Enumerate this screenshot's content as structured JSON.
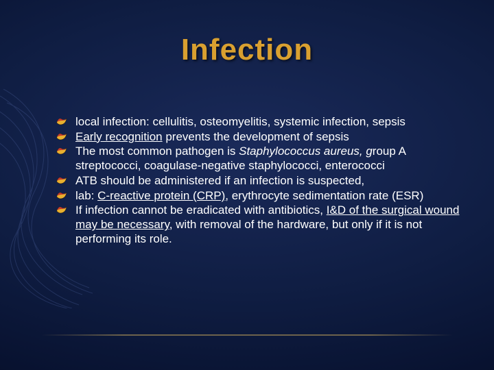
{
  "title": {
    "text": "Infection",
    "color": "#d9a030",
    "fontsize": 44
  },
  "body": {
    "text_color": "#ffffff",
    "fontsize": 17,
    "line_height": 1.22
  },
  "bullet_icon": {
    "fill_top": "#c63a2a",
    "fill_bottom": "#e8b030",
    "stroke": "#2a1a00"
  },
  "background": {
    "inner": "#1a2a5a",
    "outer": "#040818"
  },
  "swirl_color": "#4a5f9a",
  "bullets": [
    {
      "parts": [
        {
          "text": "local infection: cellulitis, osteomyelitis, systemic infection, sepsis"
        }
      ]
    },
    {
      "parts": [
        {
          "text": "Early recognition",
          "underline": true
        },
        {
          "text": " prevents the development of sepsis"
        }
      ]
    },
    {
      "parts": [
        {
          "text": "The most common pathogen is "
        },
        {
          "text": "Staphylococcus aureus, g",
          "italic": true
        },
        {
          "text": "roup A streptococci, coagulase-negative staphylococci, enterococci"
        }
      ]
    },
    {
      "parts": [
        {
          "text": "ATB should be administered if an infection is suspected,"
        }
      ]
    },
    {
      "parts": [
        {
          "text": "lab: "
        },
        {
          "text": "C-reactive protein (CRP),",
          "underline": true
        },
        {
          "text": " erythrocyte sedimentation rate (ESR)"
        }
      ]
    },
    {
      "parts": [
        {
          "text": "If infection cannot be eradicated with antibiotics, "
        },
        {
          "text": "I&D of the surgical wound may be necessary",
          "underline": true
        },
        {
          "text": ", with removal of the hardware, but only if it is not performing its role."
        }
      ]
    }
  ]
}
